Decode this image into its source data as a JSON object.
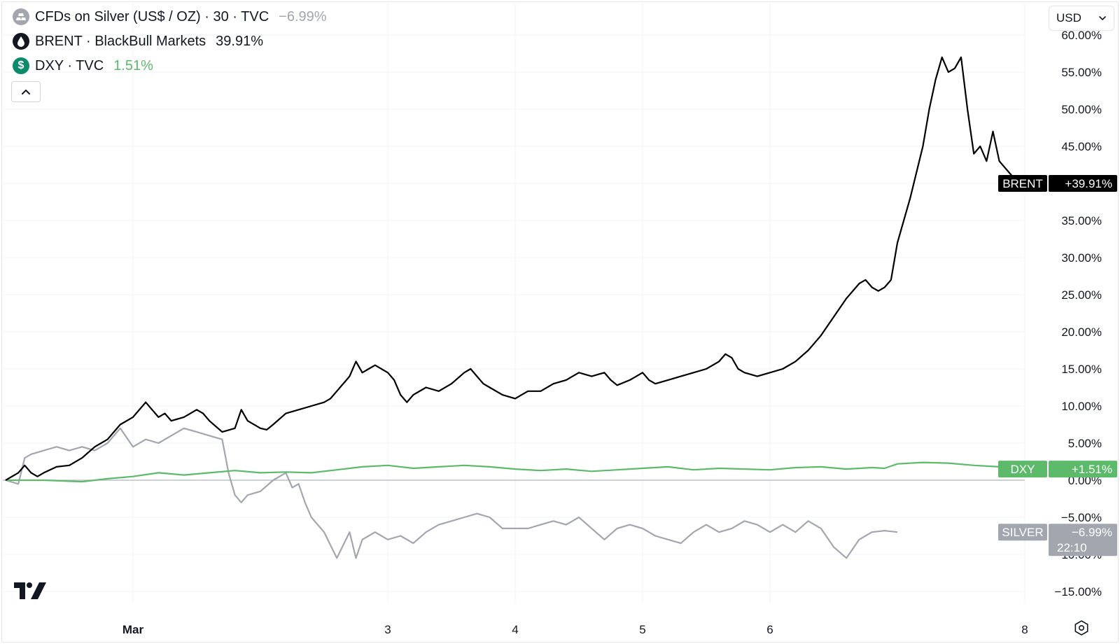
{
  "legend": [
    {
      "title": "CFDs on Silver (US$ / OZ) · 30 · TVC",
      "value": "−6.99%",
      "icon": "silver-bars-icon",
      "icon_color": "#a3a6af",
      "value_color": "#a3a6af"
    },
    {
      "title": "BRENT · BlackBull Markets",
      "value": "39.91%",
      "icon": "oil-drop-icon",
      "icon_color": "#131722",
      "value_color": "#131722"
    },
    {
      "title": "DXY · TVC",
      "value": "1.51%",
      "icon": "dollar-icon",
      "icon_color": "#0b8a6c",
      "value_color": "#5cba6a"
    }
  ],
  "toolbar": {
    "currency": "USD"
  },
  "chart_data": {
    "type": "line",
    "y_unit": "%",
    "ylim": [
      -16,
      60
    ],
    "y_ticks": [
      "60.00%",
      "55.00%",
      "50.00%",
      "45.00%",
      "40.00%",
      "35.00%",
      "30.00%",
      "25.00%",
      "20.00%",
      "15.00%",
      "10.00%",
      "5.00%",
      "0.00%",
      "−5.00%",
      "−10.00%",
      "−15.00%"
    ],
    "y_tick_values": [
      60,
      55,
      50,
      45,
      40,
      35,
      30,
      25,
      20,
      15,
      10,
      5,
      0,
      -5,
      -10,
      -15
    ],
    "x_ticks": [
      "Mar",
      "3",
      "4",
      "5",
      "6",
      "8"
    ],
    "x_tick_positions": [
      1.0,
      3.0,
      4.0,
      5.0,
      6.0,
      8.0
    ],
    "grid": true,
    "series": [
      {
        "name": "BRENT",
        "color": "#000000",
        "last_label": "+39.91%",
        "points": [
          [
            0.0,
            0.0
          ],
          [
            0.1,
            1.0
          ],
          [
            0.15,
            2.0
          ],
          [
            0.2,
            1.0
          ],
          [
            0.25,
            0.5
          ],
          [
            0.3,
            1.0
          ],
          [
            0.4,
            1.8
          ],
          [
            0.5,
            2.0
          ],
          [
            0.6,
            3.0
          ],
          [
            0.7,
            4.5
          ],
          [
            0.8,
            5.5
          ],
          [
            0.9,
            7.5
          ],
          [
            1.0,
            8.5
          ],
          [
            1.1,
            10.5
          ],
          [
            1.15,
            9.5
          ],
          [
            1.2,
            8.5
          ],
          [
            1.25,
            9.0
          ],
          [
            1.3,
            8.0
          ],
          [
            1.4,
            8.5
          ],
          [
            1.5,
            9.5
          ],
          [
            1.55,
            9.0
          ],
          [
            1.6,
            8.0
          ],
          [
            1.7,
            6.5
          ],
          [
            1.8,
            7.0
          ],
          [
            1.85,
            9.5
          ],
          [
            1.9,
            8.0
          ],
          [
            2.0,
            7.0
          ],
          [
            2.05,
            6.8
          ],
          [
            2.1,
            7.5
          ],
          [
            2.2,
            9.0
          ],
          [
            2.3,
            9.5
          ],
          [
            2.4,
            10.0
          ],
          [
            2.5,
            10.5
          ],
          [
            2.55,
            11.0
          ],
          [
            2.6,
            12.0
          ],
          [
            2.7,
            14.0
          ],
          [
            2.75,
            16.0
          ],
          [
            2.8,
            14.5
          ],
          [
            2.85,
            15.0
          ],
          [
            2.9,
            15.5
          ],
          [
            3.0,
            14.5
          ],
          [
            3.05,
            13.5
          ],
          [
            3.1,
            11.5
          ],
          [
            3.15,
            10.5
          ],
          [
            3.2,
            11.5
          ],
          [
            3.3,
            12.5
          ],
          [
            3.4,
            12.0
          ],
          [
            3.5,
            13.0
          ],
          [
            3.6,
            14.5
          ],
          [
            3.65,
            15.0
          ],
          [
            3.7,
            14.0
          ],
          [
            3.75,
            13.0
          ],
          [
            3.8,
            12.5
          ],
          [
            3.9,
            11.5
          ],
          [
            4.0,
            11.0
          ],
          [
            4.05,
            11.5
          ],
          [
            4.1,
            12.0
          ],
          [
            4.2,
            12.0
          ],
          [
            4.3,
            13.0
          ],
          [
            4.4,
            13.5
          ],
          [
            4.5,
            14.5
          ],
          [
            4.6,
            14.0
          ],
          [
            4.7,
            14.5
          ],
          [
            4.75,
            13.5
          ],
          [
            4.8,
            12.8
          ],
          [
            4.9,
            13.5
          ],
          [
            5.0,
            14.5
          ],
          [
            5.05,
            13.5
          ],
          [
            5.1,
            13.0
          ],
          [
            5.2,
            13.5
          ],
          [
            5.3,
            14.0
          ],
          [
            5.4,
            14.5
          ],
          [
            5.5,
            15.0
          ],
          [
            5.6,
            16.0
          ],
          [
            5.65,
            17.0
          ],
          [
            5.7,
            16.5
          ],
          [
            5.75,
            15.0
          ],
          [
            5.8,
            14.5
          ],
          [
            5.9,
            14.0
          ],
          [
            6.0,
            14.5
          ],
          [
            6.1,
            15.0
          ],
          [
            6.2,
            16.0
          ],
          [
            6.3,
            17.5
          ],
          [
            6.4,
            19.5
          ],
          [
            6.5,
            22.0
          ],
          [
            6.6,
            24.5
          ],
          [
            6.7,
            26.5
          ],
          [
            6.75,
            27.0
          ],
          [
            6.8,
            26.0
          ],
          [
            6.85,
            25.5
          ],
          [
            6.9,
            26.0
          ],
          [
            6.95,
            27.0
          ],
          [
            7.0,
            32.0
          ],
          [
            7.1,
            38.0
          ],
          [
            7.2,
            45.0
          ],
          [
            7.25,
            50.0
          ],
          [
            7.3,
            54.0
          ],
          [
            7.35,
            57.0
          ],
          [
            7.4,
            55.0
          ],
          [
            7.45,
            55.5
          ],
          [
            7.5,
            57.0
          ],
          [
            7.55,
            50.0
          ],
          [
            7.6,
            44.0
          ],
          [
            7.65,
            45.0
          ],
          [
            7.7,
            43.0
          ],
          [
            7.75,
            47.0
          ],
          [
            7.8,
            43.0
          ],
          [
            7.85,
            42.0
          ],
          [
            7.9,
            41.0
          ],
          [
            7.95,
            40.5
          ],
          [
            8.0,
            40.0
          ]
        ]
      },
      {
        "name": "DXY",
        "color": "#5cba6a",
        "last_label": "+1.51%",
        "points": [
          [
            0.0,
            0.0
          ],
          [
            0.3,
            0.0
          ],
          [
            0.6,
            -0.2
          ],
          [
            0.8,
            0.2
          ],
          [
            1.0,
            0.5
          ],
          [
            1.2,
            1.0
          ],
          [
            1.4,
            0.7
          ],
          [
            1.6,
            1.0
          ],
          [
            1.8,
            1.3
          ],
          [
            2.0,
            1.0
          ],
          [
            2.2,
            1.1
          ],
          [
            2.4,
            1.0
          ],
          [
            2.6,
            1.4
          ],
          [
            2.8,
            1.8
          ],
          [
            3.0,
            2.0
          ],
          [
            3.2,
            1.6
          ],
          [
            3.4,
            1.8
          ],
          [
            3.6,
            2.0
          ],
          [
            3.8,
            1.8
          ],
          [
            4.0,
            1.5
          ],
          [
            4.2,
            1.3
          ],
          [
            4.4,
            1.5
          ],
          [
            4.6,
            1.2
          ],
          [
            4.8,
            1.4
          ],
          [
            5.0,
            1.6
          ],
          [
            5.2,
            1.8
          ],
          [
            5.4,
            1.4
          ],
          [
            5.6,
            1.6
          ],
          [
            5.8,
            1.5
          ],
          [
            6.0,
            1.4
          ],
          [
            6.2,
            1.7
          ],
          [
            6.4,
            1.8
          ],
          [
            6.6,
            1.5
          ],
          [
            6.8,
            1.7
          ],
          [
            6.9,
            1.6
          ],
          [
            7.0,
            2.2
          ],
          [
            7.2,
            2.4
          ],
          [
            7.4,
            2.3
          ],
          [
            7.6,
            2.0
          ],
          [
            7.8,
            1.8
          ],
          [
            8.0,
            1.5
          ]
        ]
      },
      {
        "name": "SILVER",
        "color": "#a3a6af",
        "last_label": "−6.99%",
        "last_sublabel": "22:10",
        "points": [
          [
            0.0,
            0.0
          ],
          [
            0.1,
            -0.5
          ],
          [
            0.15,
            3.0
          ],
          [
            0.2,
            3.5
          ],
          [
            0.3,
            4.0
          ],
          [
            0.4,
            4.5
          ],
          [
            0.5,
            4.0
          ],
          [
            0.6,
            4.5
          ],
          [
            0.7,
            4.0
          ],
          [
            0.8,
            5.0
          ],
          [
            0.9,
            7.0
          ],
          [
            1.0,
            4.5
          ],
          [
            1.1,
            5.5
          ],
          [
            1.2,
            5.0
          ],
          [
            1.3,
            6.0
          ],
          [
            1.4,
            7.0
          ],
          [
            1.5,
            6.5
          ],
          [
            1.6,
            6.0
          ],
          [
            1.7,
            5.5
          ],
          [
            1.75,
            1.0
          ],
          [
            1.8,
            -2.0
          ],
          [
            1.85,
            -3.0
          ],
          [
            1.9,
            -2.0
          ],
          [
            2.0,
            -1.5
          ],
          [
            2.1,
            0.0
          ],
          [
            2.2,
            1.0
          ],
          [
            2.25,
            -1.0
          ],
          [
            2.3,
            -0.5
          ],
          [
            2.35,
            -3.0
          ],
          [
            2.4,
            -5.0
          ],
          [
            2.5,
            -7.0
          ],
          [
            2.6,
            -10.5
          ],
          [
            2.7,
            -7.0
          ],
          [
            2.75,
            -10.5
          ],
          [
            2.8,
            -8.0
          ],
          [
            2.9,
            -7.0
          ],
          [
            3.0,
            -8.0
          ],
          [
            3.1,
            -7.5
          ],
          [
            3.2,
            -8.5
          ],
          [
            3.3,
            -7.0
          ],
          [
            3.4,
            -6.0
          ],
          [
            3.5,
            -5.5
          ],
          [
            3.6,
            -5.0
          ],
          [
            3.7,
            -4.5
          ],
          [
            3.8,
            -5.0
          ],
          [
            3.9,
            -6.5
          ],
          [
            4.0,
            -6.5
          ],
          [
            4.1,
            -6.5
          ],
          [
            4.2,
            -6.0
          ],
          [
            4.3,
            -5.5
          ],
          [
            4.4,
            -6.0
          ],
          [
            4.5,
            -5.0
          ],
          [
            4.6,
            -6.5
          ],
          [
            4.7,
            -8.0
          ],
          [
            4.8,
            -6.5
          ],
          [
            4.9,
            -6.0
          ],
          [
            5.0,
            -6.5
          ],
          [
            5.1,
            -7.5
          ],
          [
            5.2,
            -8.0
          ],
          [
            5.3,
            -8.5
          ],
          [
            5.4,
            -7.0
          ],
          [
            5.5,
            -6.0
          ],
          [
            5.6,
            -7.0
          ],
          [
            5.7,
            -6.5
          ],
          [
            5.8,
            -5.5
          ],
          [
            5.9,
            -6.0
          ],
          [
            6.0,
            -7.0
          ],
          [
            6.1,
            -6.0
          ],
          [
            6.2,
            -7.0
          ],
          [
            6.3,
            -5.5
          ],
          [
            6.4,
            -6.5
          ],
          [
            6.5,
            -9.0
          ],
          [
            6.6,
            -10.5
          ],
          [
            6.7,
            -8.0
          ],
          [
            6.8,
            -7.0
          ],
          [
            6.9,
            -6.8
          ],
          [
            7.0,
            -7.0
          ]
        ]
      }
    ]
  }
}
